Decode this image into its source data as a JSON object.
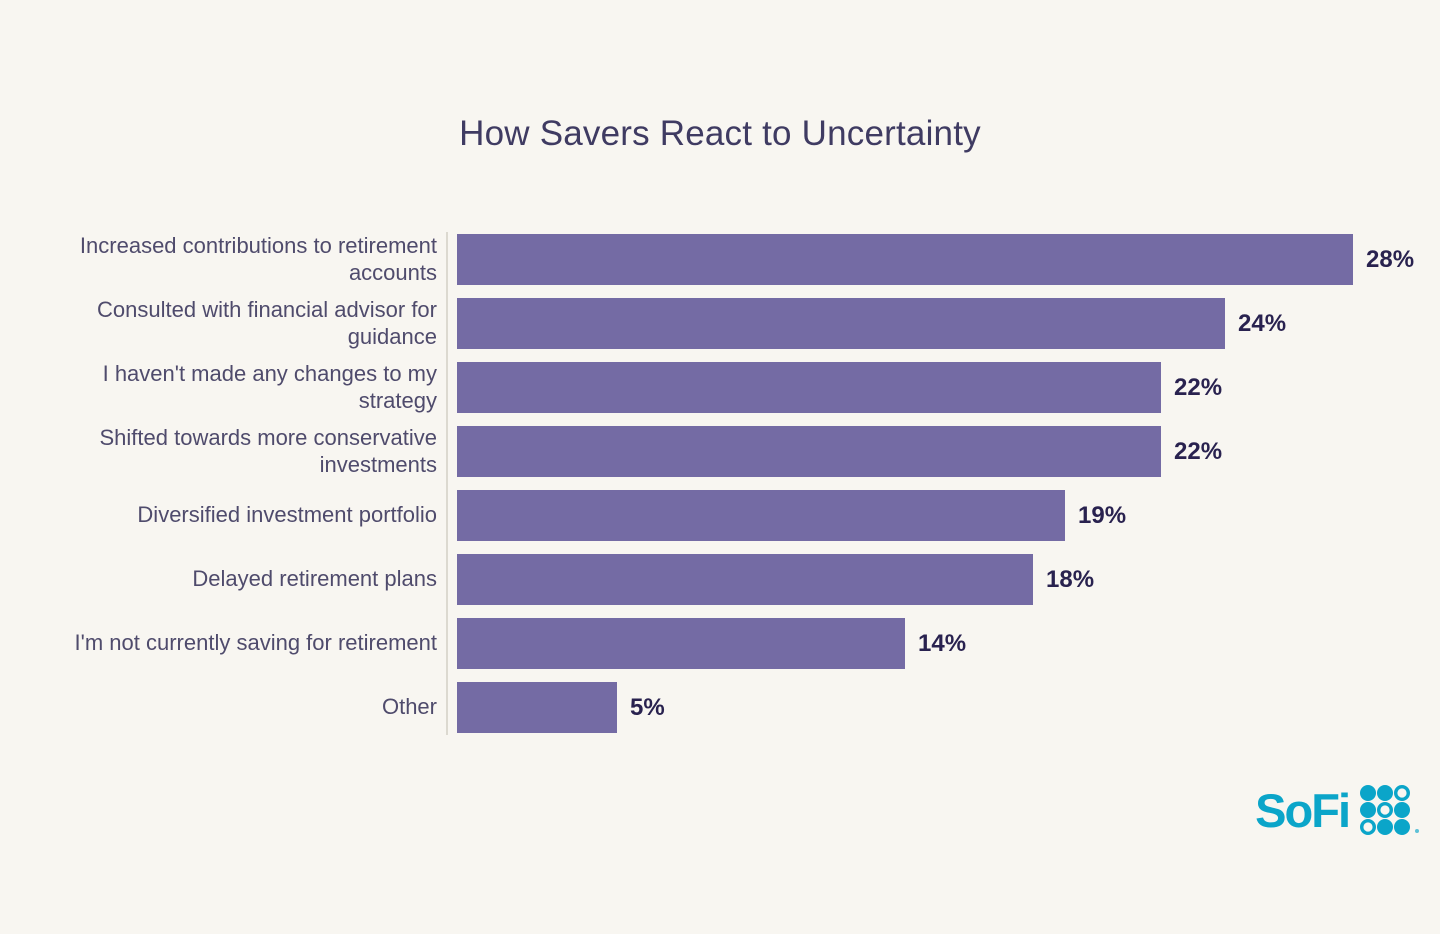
{
  "page": {
    "background_color": "#F8F6F1"
  },
  "title": "How Savers React to Uncertainty",
  "chart_data": {
    "type": "bar",
    "orientation": "horizontal",
    "title": "How Savers React to Uncertainty",
    "categories": [
      "Increased contributions to retirement accounts",
      "Consulted with financial advisor for guidance",
      "I haven't made any changes to my strategy",
      "Shifted towards more conservative investments",
      "Diversified investment portfolio",
      "Delayed retirement plans",
      "I'm not currently saving for retirement",
      "Other"
    ],
    "values": [
      28,
      24,
      22,
      22,
      19,
      18,
      14,
      5
    ],
    "value_labels": [
      "28%",
      "24%",
      "22%",
      "22%",
      "19%",
      "18%",
      "14%",
      "5%"
    ],
    "unit": "%",
    "xlim": [
      0,
      30
    ],
    "grid": false,
    "legend": false,
    "bar_color": "#746BA4",
    "value_label_color": "#29224F",
    "category_label_color": "#4F4B6C",
    "axis_line_color": "#DCD9D0",
    "title_color": "#3F3B62"
  },
  "branding": {
    "logo_text": "SoFi",
    "logo_color": "#0BA5C9",
    "grid_pattern": [
      [
        1,
        1,
        0
      ],
      [
        1,
        0,
        1
      ],
      [
        0,
        1,
        1
      ]
    ]
  }
}
